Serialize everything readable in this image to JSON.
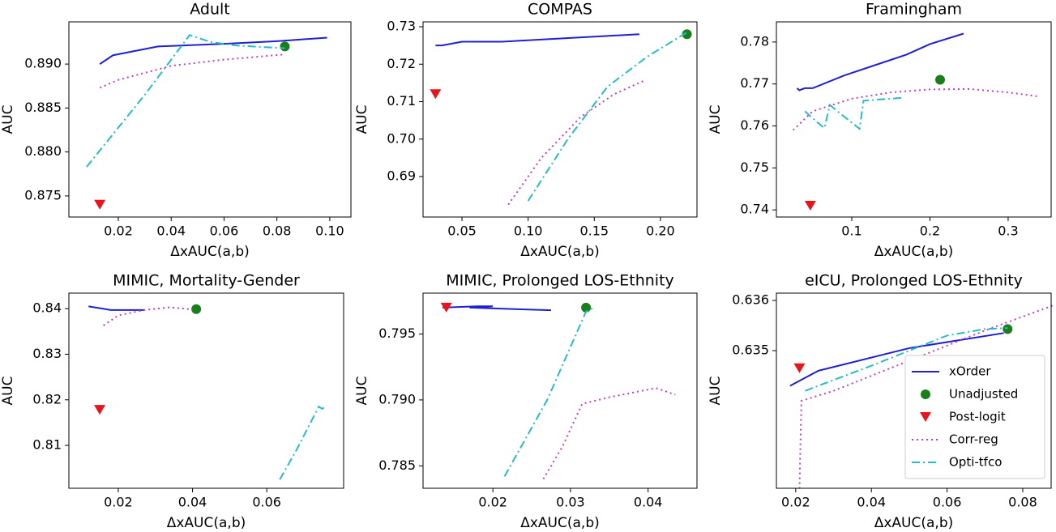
{
  "chart_data": [
    {
      "type": "line",
      "title": "Adult",
      "xlabel": "ΔxAUC(a,b)",
      "ylabel": "AUC",
      "xlim": [
        0.0013,
        0.108
      ],
      "ylim": [
        0.8726,
        0.8948
      ],
      "xticks": [
        0.02,
        0.04,
        0.06,
        0.08,
        {
          "value": 0.1,
          "label": "0.10"
        }
      ],
      "yticks": [
        0.875,
        {
          "value": 0.88,
          "label": "0.880"
        },
        0.885,
        {
          "value": 0.89,
          "label": "0.890"
        }
      ],
      "series": [
        {
          "style": "solid",
          "color": "#2020d0",
          "x": [
            0.013,
            0.018,
            0.035,
            0.06,
            0.08,
            0.099
          ],
          "values": [
            0.89,
            0.891,
            0.892,
            0.8923,
            0.8926,
            0.893
          ]
        },
        {
          "style": "circle",
          "color": "#1a7f1a",
          "x": [
            0.083
          ],
          "values": [
            0.892
          ]
        },
        {
          "style": "triangle-down",
          "color": "#e8141a",
          "x": [
            0.013
          ],
          "values": [
            0.874
          ]
        },
        {
          "style": "dotted",
          "color": "#bf3fbf",
          "x": [
            0.013,
            0.02,
            0.04,
            0.06,
            0.083
          ],
          "values": [
            0.8873,
            0.8882,
            0.8898,
            0.8905,
            0.8911
          ]
        },
        {
          "style": "dashdot",
          "color": "#26bcc6",
          "x": [
            0.008,
            0.03,
            0.047,
            0.055,
            0.065,
            0.083
          ],
          "values": [
            0.8783,
            0.8865,
            0.8933,
            0.8925,
            0.8921,
            0.8918
          ]
        }
      ]
    },
    {
      "type": "line",
      "title": "COMPAS",
      "xlabel": "ΔxAUC(a,b)",
      "ylabel": "AUC",
      "xlim": [
        0.0206,
        0.2276
      ],
      "ylim": [
        0.6792,
        0.7313
      ],
      "xticks": [
        0.05,
        {
          "value": 0.1,
          "label": "0.10"
        },
        0.15,
        {
          "value": 0.2,
          "label": "0.20"
        }
      ],
      "yticks": [
        0.69,
        {
          "value": 0.7,
          "label": "0.70"
        },
        0.71,
        0.72,
        0.73
      ],
      "series": [
        {
          "style": "solid",
          "color": "#2020d0",
          "x": [
            0.03,
            0.035,
            0.05,
            0.08,
            0.184
          ],
          "values": [
            0.725,
            0.725,
            0.726,
            0.726,
            0.728
          ]
        },
        {
          "style": "circle",
          "color": "#1a7f1a",
          "x": [
            0.22
          ],
          "values": [
            0.728
          ]
        },
        {
          "style": "triangle-down",
          "color": "#e8141a",
          "x": [
            0.03
          ],
          "values": [
            0.712
          ]
        },
        {
          "style": "dotted",
          "color": "#bf3fbf",
          "x": [
            0.085,
            0.11,
            0.14,
            0.165,
            0.187
          ],
          "values": [
            0.6825,
            0.695,
            0.706,
            0.712,
            0.7155
          ]
        },
        {
          "style": "dashdot",
          "color": "#26bcc6",
          "x": [
            0.1,
            0.13,
            0.16,
            0.19,
            0.22
          ],
          "values": [
            0.6835,
            0.7,
            0.714,
            0.722,
            0.7285
          ]
        }
      ]
    },
    {
      "type": "line",
      "title": "Framingham",
      "xlabel": "ΔxAUC(a,b)",
      "ylabel": "AUC",
      "xlim": [
        0.0036,
        0.355
      ],
      "ylim": [
        0.7383,
        0.7848
      ],
      "xticks": [
        0.1,
        0.2,
        0.3
      ],
      "yticks": [
        0.74,
        0.75,
        0.76,
        0.77,
        0.78
      ],
      "series": [
        {
          "style": "solid",
          "color": "#2020d0",
          "x": [
            0.03,
            0.033,
            0.04,
            0.05,
            0.09,
            0.13,
            0.17,
            0.2,
            0.243
          ],
          "values": [
            0.769,
            0.7685,
            0.769,
            0.769,
            0.772,
            0.7745,
            0.777,
            0.7795,
            0.782
          ]
        },
        {
          "style": "circle",
          "color": "#1a7f1a",
          "x": [
            0.213
          ],
          "values": [
            0.771
          ]
        },
        {
          "style": "triangle-down",
          "color": "#e8141a",
          "x": [
            0.047
          ],
          "values": [
            0.741
          ]
        },
        {
          "style": "dotted",
          "color": "#bf3fbf",
          "x": [
            0.025,
            0.05,
            0.1,
            0.15,
            0.2,
            0.25,
            0.3,
            0.34
          ],
          "values": [
            0.759,
            0.7635,
            0.7665,
            0.768,
            0.7687,
            0.7688,
            0.768,
            0.767
          ]
        },
        {
          "style": "dashdot",
          "color": "#26bcc6",
          "x": [
            0.04,
            0.055,
            0.065,
            0.072,
            0.085,
            0.11,
            0.115,
            0.165
          ],
          "values": [
            0.7635,
            0.761,
            0.7595,
            0.765,
            0.763,
            0.7593,
            0.766,
            0.7667
          ]
        }
      ]
    },
    {
      "type": "line",
      "title": "MIMIC, Mortality-Gender",
      "xlabel": "ΔxAUC(a,b)",
      "ylabel": "AUC",
      "xlim": [
        0.0067,
        0.0807
      ],
      "ylim": [
        0.8006,
        0.8434
      ],
      "xticks": [
        0.02,
        0.04,
        0.06
      ],
      "yticks": [
        0.81,
        0.82,
        0.83,
        0.84
      ],
      "series": [
        {
          "style": "solid",
          "color": "#2020d0",
          "x": [
            0.012,
            0.018,
            0.027
          ],
          "values": [
            0.8405,
            0.8397,
            0.8397
          ]
        },
        {
          "style": "circle",
          "color": "#1a7f1a",
          "x": [
            0.041
          ],
          "values": [
            0.8399
          ]
        },
        {
          "style": "triangle-down",
          "color": "#e8141a",
          "x": [
            0.015
          ],
          "values": [
            0.8178
          ]
        },
        {
          "style": "dotted",
          "color": "#bf3fbf",
          "x": [
            0.016,
            0.02,
            0.027,
            0.034,
            0.04
          ],
          "values": [
            0.8363,
            0.8385,
            0.8397,
            0.8403,
            0.8398
          ]
        },
        {
          "style": "dashdot",
          "color": "#26bcc6",
          "x": [
            0.0635,
            0.068,
            0.074,
            0.075,
            0.0755
          ],
          "values": [
            0.8025,
            0.809,
            0.8185,
            0.818,
            0.8185
          ]
        }
      ]
    },
    {
      "type": "line",
      "title": "MIMIC, Prolonged LOS-Ethnity",
      "xlabel": "ΔxAUC(a,b)",
      "ylabel": "AUC",
      "xlim": [
        0.011,
        0.0463
      ],
      "ylim": [
        0.7833,
        0.7981
      ],
      "xticks": [
        0.02,
        0.03,
        0.04
      ],
      "yticks": [
        0.785,
        {
          "value": 0.79,
          "label": "0.790"
        },
        0.795
      ],
      "series": [
        {
          "style": "solid",
          "color": "#2020d0",
          "x": [
            0.0135,
            0.018,
            0.02,
            0.017,
            0.0275
          ],
          "values": [
            0.797,
            0.7971,
            0.7971,
            0.797,
            0.7968
          ]
        },
        {
          "style": "circle",
          "color": "#1a7f1a",
          "x": [
            0.032
          ],
          "values": [
            0.797
          ]
        },
        {
          "style": "triangle-down",
          "color": "#e8141a",
          "x": [
            0.014
          ],
          "values": [
            0.797
          ]
        },
        {
          "style": "dotted",
          "color": "#bf3fbf",
          "x": [
            0.0265,
            0.029,
            0.0315,
            0.035,
            0.041,
            0.0435
          ],
          "values": [
            0.784,
            0.7865,
            0.7897,
            0.7902,
            0.7909,
            0.7904
          ]
        },
        {
          "style": "dashdot",
          "color": "#26bcc6",
          "x": [
            0.0215,
            0.027,
            0.032,
            0.033
          ],
          "values": [
            0.7842,
            0.79,
            0.7967,
            0.797
          ]
        }
      ]
    },
    {
      "type": "line",
      "title": "eICU, Prolonged LOS-Ethnity",
      "xlabel": "ΔxAUC(a,b)",
      "ylabel": "AUC",
      "xlim": [
        0.0149,
        0.0875
      ],
      "ylim": [
        0.63226,
        0.636145
      ],
      "xticks": [
        0.02,
        0.04,
        0.06,
        0.08
      ],
      "yticks": [
        0.635,
        0.636
      ],
      "legend": "lower right",
      "series": [
        {
          "name": "xOrder",
          "style": "solid",
          "color": "#2020d0",
          "x": [
            0.0185,
            0.026,
            0.05,
            0.075
          ],
          "values": [
            0.6343,
            0.6346,
            0.63505,
            0.63535
          ]
        },
        {
          "name": "Unadjusted",
          "style": "circle",
          "color": "#1a7f1a",
          "x": [
            0.076
          ],
          "values": [
            0.63543
          ]
        },
        {
          "name": "Post-logit",
          "style": "triangle-down",
          "color": "#e8141a",
          "x": [
            0.021
          ],
          "values": [
            0.63465
          ]
        },
        {
          "name": "Corr-reg",
          "style": "dotted",
          "color": "#bf3fbf",
          "x": [
            0.021,
            0.0215,
            0.03,
            0.05,
            0.07,
            0.088
          ],
          "values": [
            0.63225,
            0.634,
            0.6342,
            0.6348,
            0.6354,
            0.6359
          ]
        },
        {
          "name": "Opti-tfco",
          "style": "dashdot",
          "color": "#26bcc6",
          "x": [
            0.0225,
            0.04,
            0.06,
            0.07,
            0.076
          ],
          "values": [
            0.6342,
            0.6347,
            0.6353,
            0.63543,
            0.63545
          ]
        }
      ]
    }
  ]
}
